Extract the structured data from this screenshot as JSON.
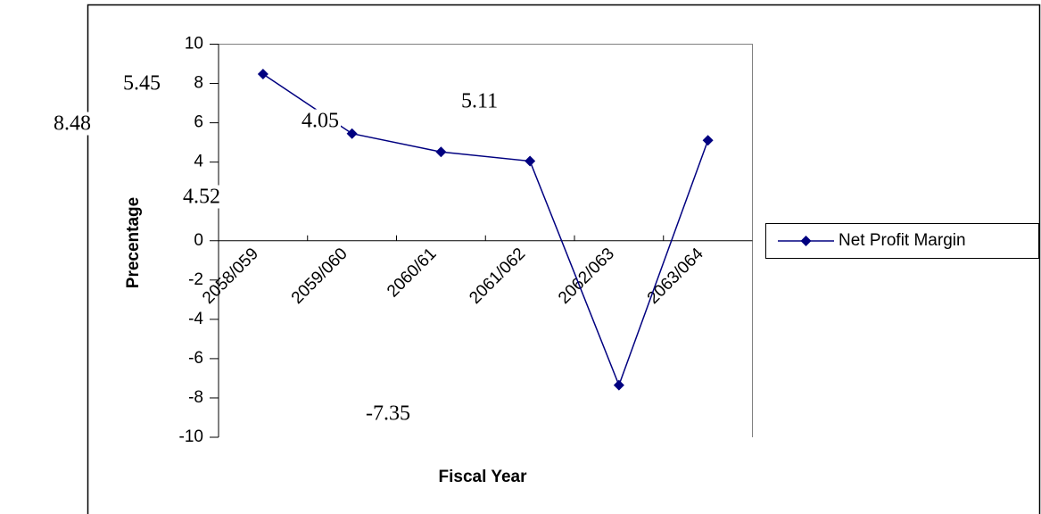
{
  "chart_data": {
    "type": "line",
    "x_label": "Fiscal Year",
    "y_label": "Precentage",
    "categories": [
      "2058/059",
      "2059/060",
      "2060/61",
      "2061/062",
      "2062/063",
      "2063/064"
    ],
    "series": [
      {
        "name": "Net Profit Margin",
        "color": "#000080",
        "values": [
          8.48,
          5.45,
          4.52,
          4.05,
          -7.35,
          5.11
        ]
      }
    ],
    "ylim": [
      -10,
      10
    ],
    "yticks": [
      -10,
      -8,
      -6,
      -4,
      -2,
      0,
      2,
      4,
      6,
      8,
      10
    ],
    "legend": "right"
  }
}
